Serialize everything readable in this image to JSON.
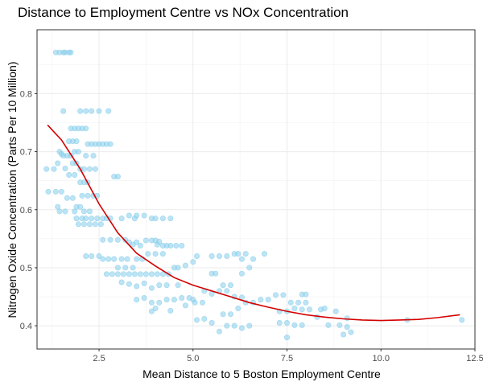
{
  "chart_data": {
    "type": "scatter",
    "title": "Distance to Employment Centre vs NOx Concentration",
    "xlabel": "Mean Distance to 5 Boston Employment Centre",
    "ylabel": "Nitrogen Oxide Concentration (Parts Per 10 Million)",
    "xlim": [
      0.85,
      12.5
    ],
    "ylim": [
      0.36,
      0.91
    ],
    "x_ticks": [
      2.5,
      5.0,
      7.5,
      10.0,
      12.5
    ],
    "x_tick_labels": [
      "2.5",
      "5.0",
      "7.5",
      "10.0",
      "12.5"
    ],
    "y_ticks": [
      0.4,
      0.5,
      0.6,
      0.7,
      0.8
    ],
    "y_tick_labels": [
      "0.4",
      "0.5",
      "0.6",
      "0.7",
      "0.8"
    ],
    "grid": true,
    "point_color": "#87CEEB",
    "trend_color": "#D40000",
    "series": [
      {
        "name": "observations",
        "points": [
          [
            1.35,
            0.871
          ],
          [
            1.45,
            0.871
          ],
          [
            1.55,
            0.871
          ],
          [
            1.6,
            0.871
          ],
          [
            1.7,
            0.871
          ],
          [
            1.75,
            0.871
          ],
          [
            1.1,
            0.67
          ],
          [
            1.15,
            0.631
          ],
          [
            1.3,
            0.67
          ],
          [
            1.35,
            0.631
          ],
          [
            1.4,
            0.605
          ],
          [
            1.45,
            0.7
          ],
          [
            1.5,
            0.696
          ],
          [
            1.55,
            0.693
          ],
          [
            1.6,
            0.671
          ],
          [
            1.4,
            0.68
          ],
          [
            1.5,
            0.631
          ],
          [
            1.45,
            0.597
          ],
          [
            1.6,
            0.597
          ],
          [
            1.7,
            0.718
          ],
          [
            1.8,
            0.718
          ],
          [
            1.9,
            0.718
          ],
          [
            1.75,
            0.74
          ],
          [
            1.85,
            0.74
          ],
          [
            1.95,
            0.74
          ],
          [
            2.05,
            0.74
          ],
          [
            2.15,
            0.74
          ],
          [
            1.65,
            0.693
          ],
          [
            1.75,
            0.693
          ],
          [
            1.85,
            0.7
          ],
          [
            1.95,
            0.7
          ],
          [
            1.8,
            0.68
          ],
          [
            1.9,
            0.68
          ],
          [
            2.0,
            0.67
          ],
          [
            1.7,
            0.66
          ],
          [
            1.85,
            0.66
          ],
          [
            1.55,
            0.77
          ],
          [
            2.0,
            0.77
          ],
          [
            2.15,
            0.77
          ],
          [
            2.3,
            0.77
          ],
          [
            2.5,
            0.77
          ],
          [
            2.75,
            0.77
          ],
          [
            2.2,
            0.713
          ],
          [
            2.3,
            0.713
          ],
          [
            2.4,
            0.713
          ],
          [
            2.5,
            0.713
          ],
          [
            2.6,
            0.713
          ],
          [
            2.7,
            0.713
          ],
          [
            2.8,
            0.713
          ],
          [
            2.15,
            0.693
          ],
          [
            2.35,
            0.693
          ],
          [
            2.1,
            0.67
          ],
          [
            2.25,
            0.67
          ],
          [
            2.4,
            0.67
          ],
          [
            2.0,
            0.647
          ],
          [
            2.1,
            0.647
          ],
          [
            2.2,
            0.647
          ],
          [
            2.05,
            0.624
          ],
          [
            2.2,
            0.624
          ],
          [
            2.35,
            0.624
          ],
          [
            2.45,
            0.624
          ],
          [
            1.65,
            0.62
          ],
          [
            1.8,
            0.62
          ],
          [
            1.9,
            0.605
          ],
          [
            2.0,
            0.605
          ],
          [
            1.85,
            0.597
          ],
          [
            2.1,
            0.597
          ],
          [
            2.25,
            0.597
          ],
          [
            1.9,
            0.585
          ],
          [
            2.05,
            0.585
          ],
          [
            2.15,
            0.585
          ],
          [
            2.3,
            0.585
          ],
          [
            2.45,
            0.585
          ],
          [
            2.6,
            0.585
          ],
          [
            2.7,
            0.585
          ],
          [
            2.8,
            0.585
          ],
          [
            1.95,
            0.575
          ],
          [
            2.1,
            0.575
          ],
          [
            2.25,
            0.575
          ],
          [
            2.4,
            0.575
          ],
          [
            2.55,
            0.575
          ],
          [
            2.15,
            0.52
          ],
          [
            2.3,
            0.52
          ],
          [
            2.5,
            0.52
          ],
          [
            2.9,
            0.657
          ],
          [
            3.0,
            0.657
          ],
          [
            2.6,
            0.548
          ],
          [
            2.8,
            0.548
          ],
          [
            3.0,
            0.548
          ],
          [
            3.2,
            0.548
          ],
          [
            3.3,
            0.544
          ],
          [
            3.4,
            0.54
          ],
          [
            3.5,
            0.544
          ],
          [
            3.6,
            0.538
          ],
          [
            3.3,
            0.59
          ],
          [
            3.5,
            0.59
          ],
          [
            3.7,
            0.59
          ],
          [
            3.9,
            0.585
          ],
          [
            4.0,
            0.585
          ],
          [
            4.2,
            0.585
          ],
          [
            4.4,
            0.585
          ],
          [
            3.1,
            0.585
          ],
          [
            3.45,
            0.585
          ],
          [
            3.75,
            0.547
          ],
          [
            3.9,
            0.547
          ],
          [
            4.0,
            0.547
          ],
          [
            4.05,
            0.54
          ],
          [
            4.1,
            0.545
          ],
          [
            4.2,
            0.538
          ],
          [
            4.3,
            0.538
          ],
          [
            4.4,
            0.538
          ],
          [
            4.55,
            0.538
          ],
          [
            4.7,
            0.538
          ],
          [
            3.8,
            0.524
          ],
          [
            4.0,
            0.524
          ],
          [
            4.2,
            0.524
          ],
          [
            3.5,
            0.515
          ],
          [
            3.65,
            0.515
          ],
          [
            2.6,
            0.515
          ],
          [
            2.75,
            0.515
          ],
          [
            2.9,
            0.515
          ],
          [
            3.1,
            0.515
          ],
          [
            3.25,
            0.515
          ],
          [
            2.7,
            0.489
          ],
          [
            2.85,
            0.489
          ],
          [
            3.0,
            0.489
          ],
          [
            3.15,
            0.489
          ],
          [
            3.3,
            0.489
          ],
          [
            3.45,
            0.489
          ],
          [
            3.6,
            0.489
          ],
          [
            3.75,
            0.489
          ],
          [
            3.9,
            0.489
          ],
          [
            4.05,
            0.489
          ],
          [
            4.2,
            0.489
          ],
          [
            4.35,
            0.489
          ],
          [
            3.0,
            0.5
          ],
          [
            3.2,
            0.5
          ],
          [
            3.4,
            0.5
          ],
          [
            4.5,
            0.5
          ],
          [
            4.6,
            0.5
          ],
          [
            4.8,
            0.504
          ],
          [
            5.0,
            0.51
          ],
          [
            5.1,
            0.52
          ],
          [
            5.5,
            0.52
          ],
          [
            5.7,
            0.52
          ],
          [
            5.9,
            0.52
          ],
          [
            3.1,
            0.475
          ],
          [
            3.3,
            0.472
          ],
          [
            3.5,
            0.468
          ],
          [
            3.7,
            0.473
          ],
          [
            3.9,
            0.465
          ],
          [
            4.1,
            0.47
          ],
          [
            4.3,
            0.47
          ],
          [
            4.6,
            0.47
          ],
          [
            3.5,
            0.445
          ],
          [
            3.7,
            0.448
          ],
          [
            3.9,
            0.44
          ],
          [
            4.1,
            0.44
          ],
          [
            4.3,
            0.445
          ],
          [
            4.5,
            0.445
          ],
          [
            4.7,
            0.448
          ],
          [
            4.9,
            0.448
          ],
          [
            5.0,
            0.445
          ],
          [
            3.9,
            0.425
          ],
          [
            4.0,
            0.43
          ],
          [
            4.4,
            0.426
          ],
          [
            4.8,
            0.435
          ],
          [
            5.05,
            0.44
          ],
          [
            5.25,
            0.44
          ],
          [
            6.1,
            0.524
          ],
          [
            6.2,
            0.524
          ],
          [
            6.3,
            0.515
          ],
          [
            6.4,
            0.524
          ],
          [
            6.6,
            0.515
          ],
          [
            6.9,
            0.524
          ],
          [
            6.5,
            0.5
          ],
          [
            6.3,
            0.49
          ],
          [
            5.5,
            0.49
          ],
          [
            5.6,
            0.49
          ],
          [
            5.8,
            0.47
          ],
          [
            6.0,
            0.47
          ],
          [
            5.3,
            0.46
          ],
          [
            5.5,
            0.455
          ],
          [
            5.7,
            0.46
          ],
          [
            5.9,
            0.46
          ],
          [
            6.1,
            0.45
          ],
          [
            6.3,
            0.449
          ],
          [
            5.1,
            0.41
          ],
          [
            5.3,
            0.412
          ],
          [
            5.5,
            0.405
          ],
          [
            5.8,
            0.42
          ],
          [
            6.0,
            0.42
          ],
          [
            6.2,
            0.43
          ],
          [
            6.4,
            0.44
          ],
          [
            6.6,
            0.44
          ],
          [
            6.8,
            0.445
          ],
          [
            7.0,
            0.445
          ],
          [
            5.9,
            0.4
          ],
          [
            6.1,
            0.4
          ],
          [
            6.3,
            0.396
          ],
          [
            6.5,
            0.4
          ],
          [
            5.7,
            0.39
          ],
          [
            7.2,
            0.453
          ],
          [
            7.4,
            0.453
          ],
          [
            7.6,
            0.44
          ],
          [
            7.8,
            0.44
          ],
          [
            8.0,
            0.44
          ],
          [
            7.3,
            0.425
          ],
          [
            7.5,
            0.425
          ],
          [
            7.7,
            0.43
          ],
          [
            7.9,
            0.428
          ],
          [
            8.1,
            0.428
          ],
          [
            8.4,
            0.428
          ],
          [
            7.9,
            0.454
          ],
          [
            8.0,
            0.454
          ],
          [
            8.5,
            0.43
          ],
          [
            8.8,
            0.425
          ],
          [
            8.3,
            0.415
          ],
          [
            7.3,
            0.405
          ],
          [
            7.5,
            0.405
          ],
          [
            7.7,
            0.401
          ],
          [
            7.9,
            0.401
          ],
          [
            8.6,
            0.401
          ],
          [
            8.9,
            0.401
          ],
          [
            9.1,
            0.398
          ],
          [
            9.2,
            0.389
          ],
          [
            7.5,
            0.38
          ],
          [
            9.0,
            0.385
          ],
          [
            9.1,
            0.413
          ],
          [
            10.7,
            0.41
          ],
          [
            12.15,
            0.41
          ]
        ]
      }
    ],
    "trend": {
      "name": "loess",
      "points": [
        [
          1.13,
          0.746
        ],
        [
          1.5,
          0.72
        ],
        [
          2.0,
          0.67
        ],
        [
          2.5,
          0.61
        ],
        [
          3.0,
          0.56
        ],
        [
          3.5,
          0.525
        ],
        [
          4.0,
          0.503
        ],
        [
          4.5,
          0.483
        ],
        [
          5.0,
          0.47
        ],
        [
          5.5,
          0.46
        ],
        [
          6.0,
          0.45
        ],
        [
          6.5,
          0.44
        ],
        [
          7.0,
          0.432
        ],
        [
          7.5,
          0.425
        ],
        [
          8.0,
          0.419
        ],
        [
          8.5,
          0.415
        ],
        [
          9.0,
          0.412
        ],
        [
          9.5,
          0.41
        ],
        [
          10.0,
          0.409
        ],
        [
          10.5,
          0.41
        ],
        [
          11.0,
          0.411
        ],
        [
          11.5,
          0.414
        ],
        [
          12.1,
          0.419
        ]
      ]
    }
  }
}
